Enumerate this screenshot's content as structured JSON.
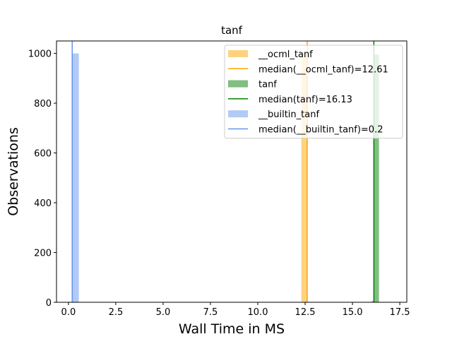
{
  "chart_data": {
    "type": "bar",
    "title": "tanf",
    "xlabel": "Wall Time in MS",
    "ylabel": "Observations",
    "xlim": [
      -0.63,
      17.87
    ],
    "ylim": [
      0,
      1050
    ],
    "xticks": [
      0.0,
      2.5,
      5.0,
      7.5,
      10.0,
      12.5,
      15.0,
      17.5
    ],
    "xtick_labels": [
      "0.0",
      "2.5",
      "5.0",
      "7.5",
      "10.0",
      "12.5",
      "15.0",
      "17.5"
    ],
    "yticks": [
      0,
      200,
      400,
      600,
      800,
      1000
    ],
    "ytick_labels": [
      "0",
      "200",
      "400",
      "600",
      "800",
      "1000"
    ],
    "grid": false,
    "legend_position": "top-right",
    "series": [
      {
        "name": "__ocml_tanf",
        "kind": "histogram",
        "color": "#ffa500",
        "opacity": 0.5,
        "bins": [
          {
            "x0": 12.3,
            "x1": 12.6,
            "count": 1000
          }
        ]
      },
      {
        "name": "tanf",
        "kind": "histogram",
        "color": "#008000",
        "opacity": 0.5,
        "bins": [
          {
            "x0": 16.03,
            "x1": 16.13,
            "count": 5
          },
          {
            "x0": 16.13,
            "x1": 16.4,
            "count": 995
          }
        ]
      },
      {
        "name": "__builtin_tanf",
        "kind": "histogram",
        "color": "#6495ed",
        "opacity": 0.5,
        "bins": [
          {
            "x0": 0.2,
            "x1": 0.55,
            "count": 1000
          }
        ]
      }
    ],
    "median_lines": [
      {
        "name": "median(__ocml_tanf)=12.61",
        "x": 12.61,
        "color": "#ffa500"
      },
      {
        "name": "median(tanf)=16.13",
        "x": 16.13,
        "color": "#008000"
      },
      {
        "name": "median(__builtin_tanf)=0.2",
        "x": 0.2,
        "color": "#6495ed"
      }
    ],
    "legend": [
      {
        "label": "__ocml_tanf",
        "kind": "patch",
        "color": "#ffa500"
      },
      {
        "label": "median(__ocml_tanf)=12.61",
        "kind": "line",
        "color": "#ffa500"
      },
      {
        "label": "tanf",
        "kind": "patch",
        "color": "#008000"
      },
      {
        "label": "median(tanf)=16.13",
        "kind": "line",
        "color": "#008000"
      },
      {
        "label": "__builtin_tanf",
        "kind": "patch",
        "color": "#6495ed"
      },
      {
        "label": "median(__builtin_tanf)=0.2",
        "kind": "line",
        "color": "#6495ed"
      }
    ]
  }
}
